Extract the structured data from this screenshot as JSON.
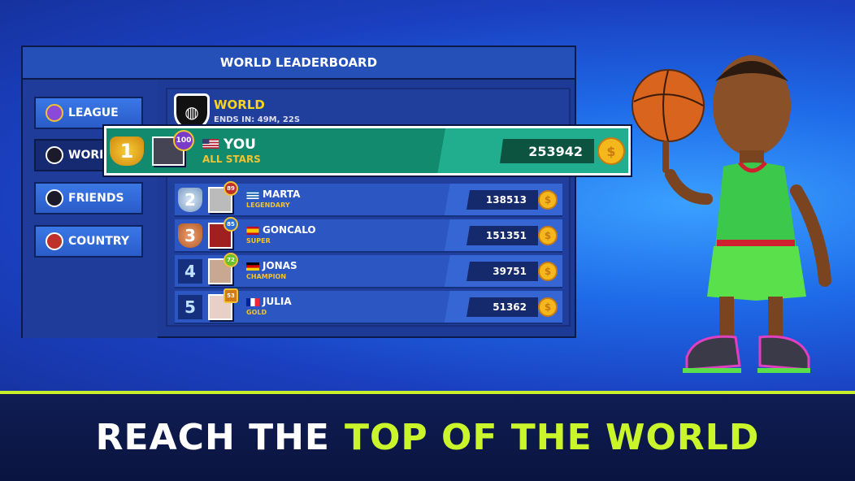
{
  "leaderboard": {
    "title": "WORLD LEADERBOARD",
    "tabs": [
      {
        "label": "LEAGUE",
        "icon": "league-badge-icon"
      },
      {
        "label": "WORLD",
        "icon": "globe-shield-icon",
        "selected": true
      },
      {
        "label": "FRIENDS",
        "icon": "friends-shield-icon"
      },
      {
        "label": "COUNTRY",
        "icon": "country-shield-icon"
      }
    ],
    "header": {
      "title": "WORLD",
      "ends_in": "ENDS IN: 49M, 22S"
    },
    "you": {
      "rank": "1",
      "level": "100",
      "country": "USA",
      "name": "YOU",
      "tier": "ALL STARS",
      "score": "253942"
    },
    "rows": [
      {
        "rank": "2",
        "level": "89",
        "country": "Greece",
        "name": "MARTA",
        "tier": "LEGENDARY",
        "score": "138513",
        "level_color": "#c0302a"
      },
      {
        "rank": "3",
        "level": "85",
        "country": "Spain",
        "name": "GONCALO",
        "tier": "SUPER",
        "score": "151351",
        "level_color": "#2a70d8"
      },
      {
        "rank": "4",
        "level": "72",
        "country": "Germany",
        "name": "JONAS",
        "tier": "CHAMPION",
        "score": "39751",
        "level_color": "#6cc02a"
      },
      {
        "rank": "5",
        "level": "53",
        "country": "France",
        "name": "JULIA",
        "tier": "GOLD",
        "score": "51362",
        "level_color": "#d07a1a"
      }
    ],
    "coin_symbol": "$"
  },
  "banner": {
    "white": "REACH THE",
    "green": "TOP OF THE WORLD"
  },
  "colors": {
    "accent": "#c9f52a",
    "gold": "#f2c230",
    "you_row": "#128a6e"
  }
}
